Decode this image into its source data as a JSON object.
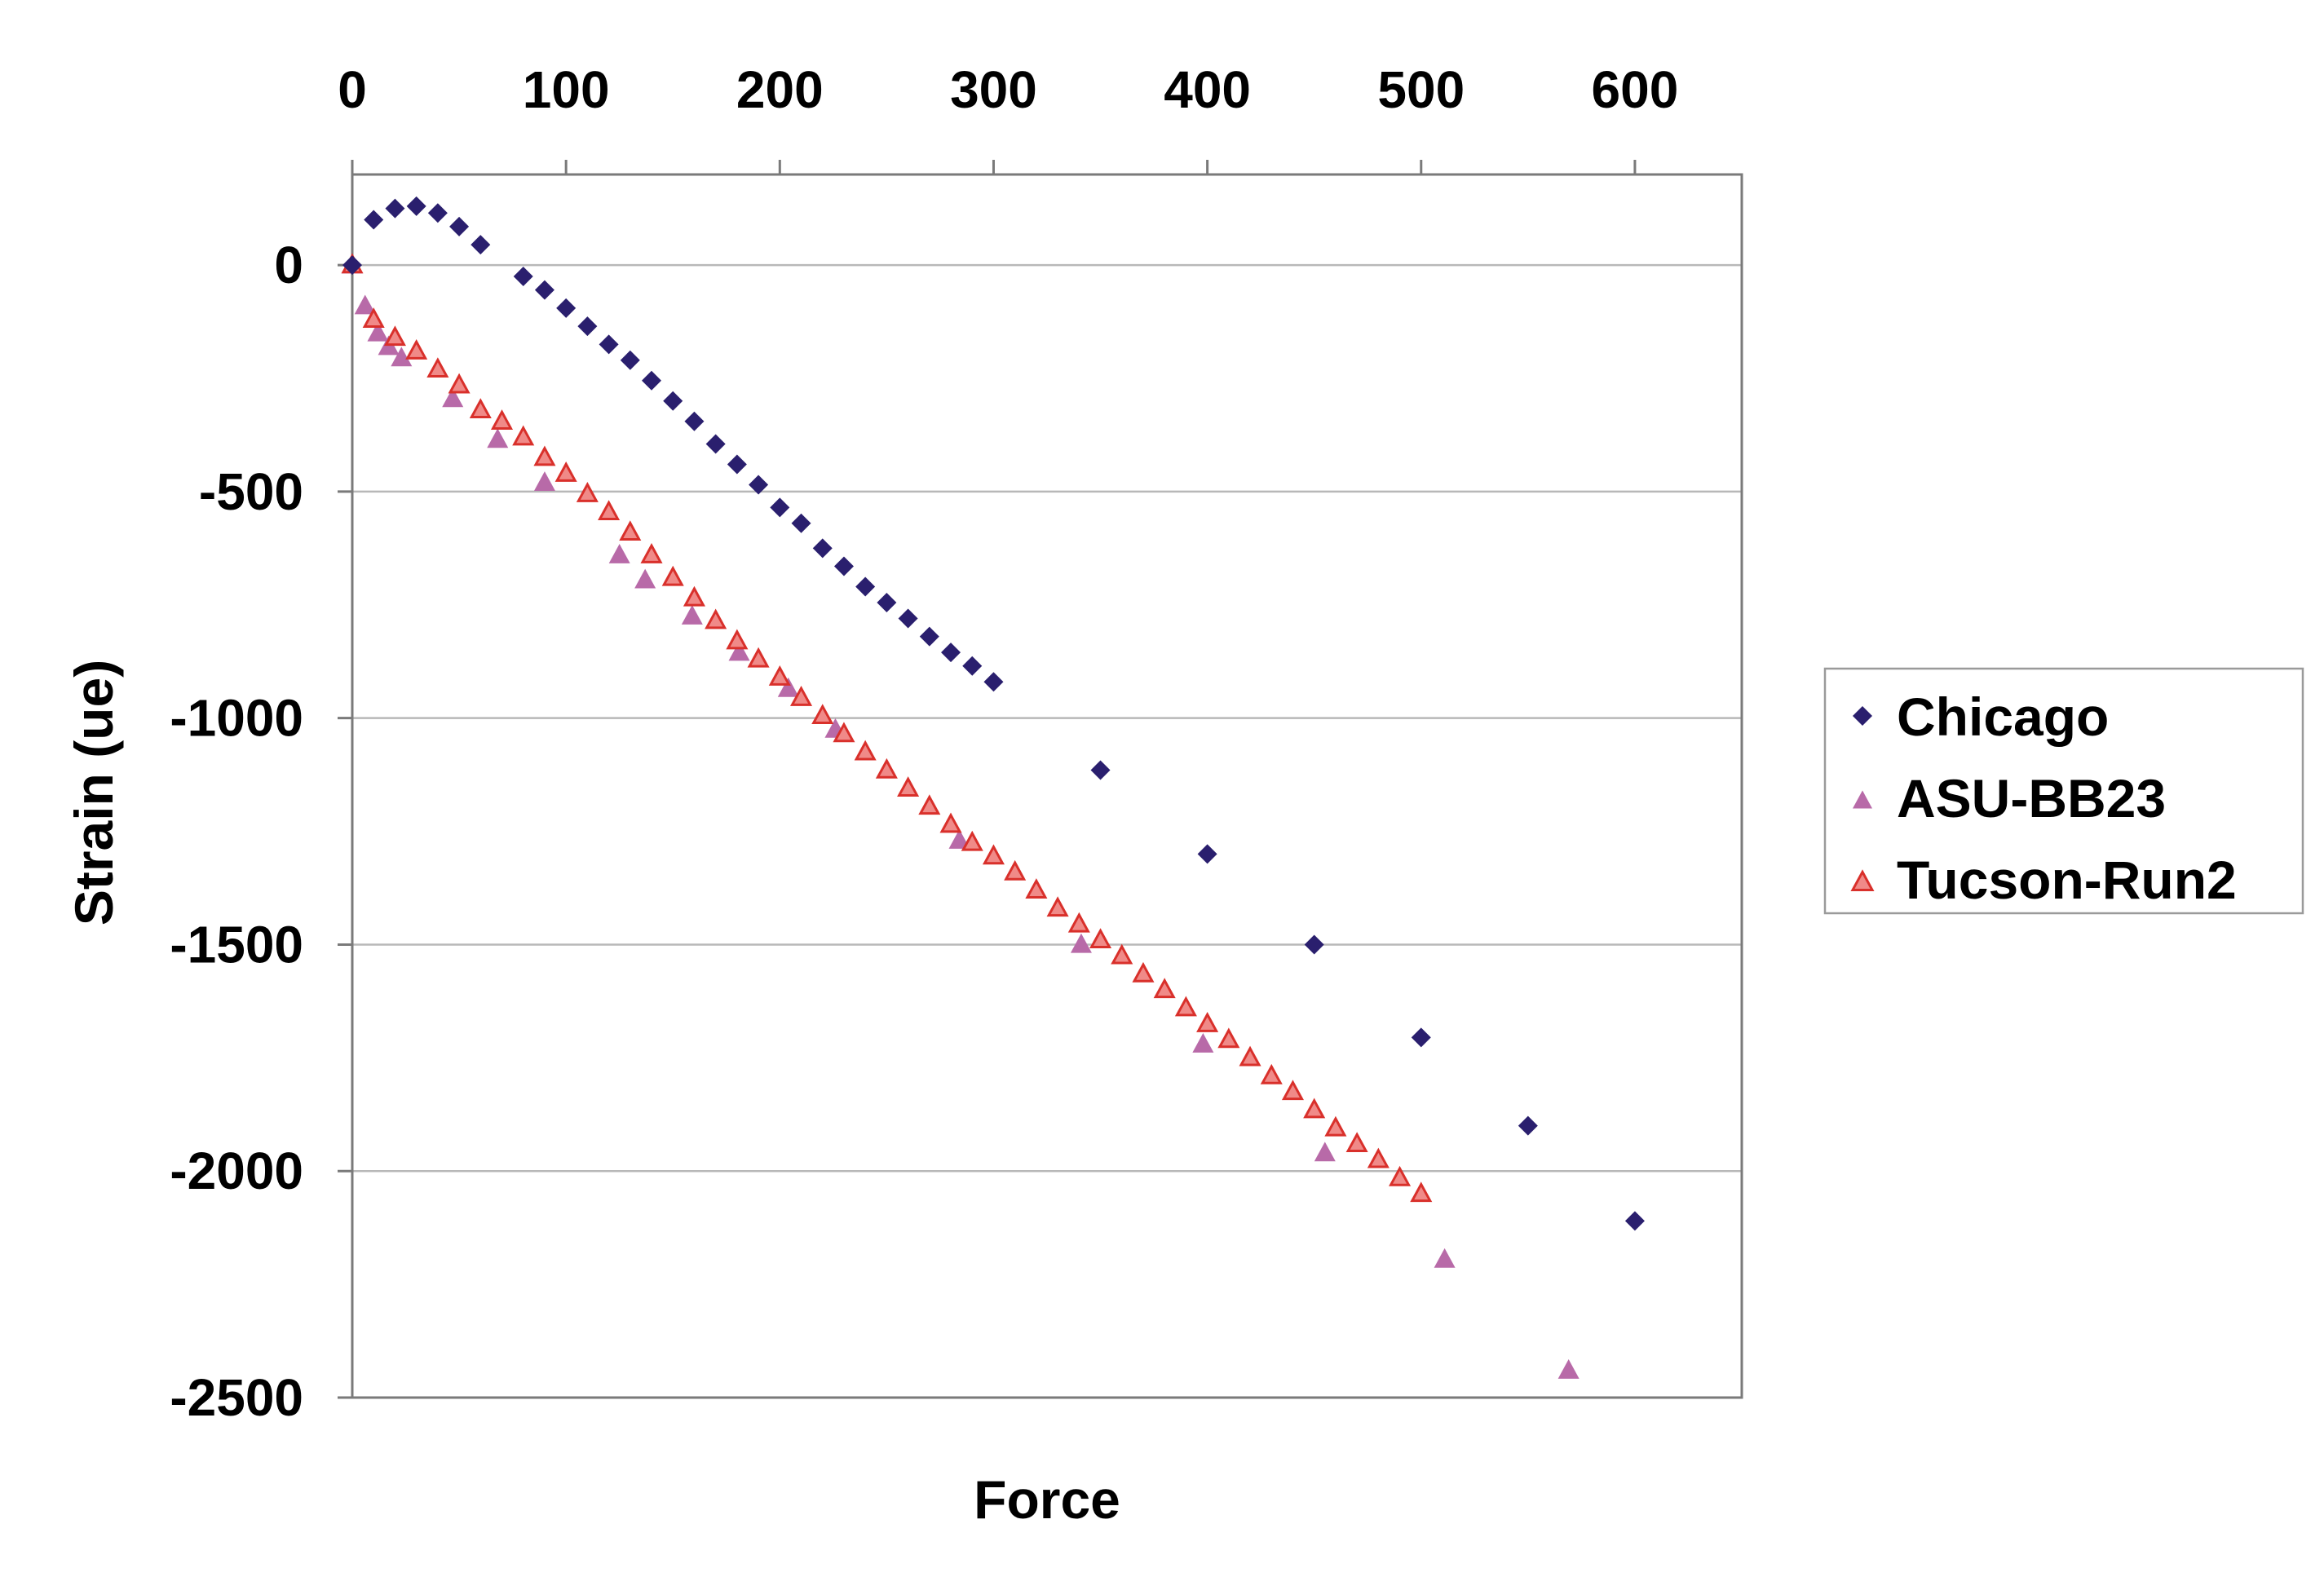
{
  "chart_data": {
    "type": "scatter",
    "title": "",
    "xlabel": "Force",
    "ylabel": "Strain (ue)",
    "x_axis_position": "top",
    "xlim": [
      0,
      650
    ],
    "ylim": [
      -2500,
      200
    ],
    "xticks": [
      0,
      100,
      200,
      300,
      400,
      500,
      600
    ],
    "yticks": [
      0,
      -500,
      -1000,
      -1500,
      -2000,
      -2500
    ],
    "grid": "horizontal",
    "legend_position": "right",
    "colors": {
      "chicago": "#2a1f6e",
      "asu": "#b86aa8",
      "tucson_fill": "#f08a88",
      "tucson_stroke": "#d9302b",
      "grid": "#b8b8b8",
      "frame": "#7a7a7a"
    },
    "series": [
      {
        "name": "Chicago",
        "marker": "diamond",
        "x": [
          0,
          10,
          20,
          30,
          40,
          50,
          60,
          80,
          90,
          100,
          110,
          120,
          130,
          140,
          150,
          160,
          170,
          180,
          190,
          200,
          210,
          220,
          230,
          240,
          250,
          260,
          270,
          280,
          290,
          300,
          350,
          400,
          450,
          500,
          550,
          600
        ],
        "y": [
          0,
          100,
          125,
          130,
          115,
          85,
          45,
          -25,
          -55,
          -95,
          -135,
          -175,
          -210,
          -255,
          -300,
          -345,
          -395,
          -440,
          -485,
          -535,
          -570,
          -625,
          -665,
          -710,
          -745,
          -780,
          -820,
          -855,
          -885,
          -920,
          -1115,
          -1300,
          -1500,
          -1705,
          -1900,
          -2110
        ]
      },
      {
        "name": "ASU-BB23",
        "marker": "triangle",
        "x": [
          0,
          6,
          12,
          17,
          23,
          47,
          68,
          90,
          125,
          137,
          159,
          181,
          204,
          226,
          284,
          341,
          398,
          455,
          511,
          569
        ],
        "y": [
          0,
          -90,
          -150,
          -180,
          -205,
          -295,
          -385,
          -480,
          -640,
          -695,
          -775,
          -855,
          -935,
          -1025,
          -1270,
          -1500,
          -1720,
          -1960,
          -2195,
          -2440
        ]
      },
      {
        "name": "Tucson-Run2",
        "marker": "triangle",
        "x": [
          0,
          10,
          20,
          30,
          40,
          50,
          60,
          70,
          80,
          90,
          100,
          110,
          120,
          130,
          140,
          150,
          160,
          170,
          180,
          190,
          200,
          210,
          220,
          230,
          240,
          250,
          260,
          270,
          280,
          290,
          300,
          310,
          320,
          330,
          340,
          350,
          360,
          370,
          380,
          390,
          400,
          410,
          420,
          430,
          440,
          450,
          460,
          470,
          480,
          490,
          500
        ],
        "y": [
          0,
          -120,
          -160,
          -190,
          -230,
          -265,
          -320,
          -345,
          -380,
          -425,
          -460,
          -505,
          -545,
          -590,
          -640,
          -690,
          -735,
          -785,
          -830,
          -870,
          -910,
          -955,
          -995,
          -1035,
          -1075,
          -1115,
          -1155,
          -1195,
          -1235,
          -1275,
          -1305,
          -1340,
          -1380,
          -1420,
          -1455,
          -1490,
          -1525,
          -1565,
          -1600,
          -1640,
          -1675,
          -1710,
          -1750,
          -1790,
          -1825,
          -1865,
          -1905,
          -1940,
          -1975,
          -2015,
          -2050
        ]
      }
    ]
  }
}
